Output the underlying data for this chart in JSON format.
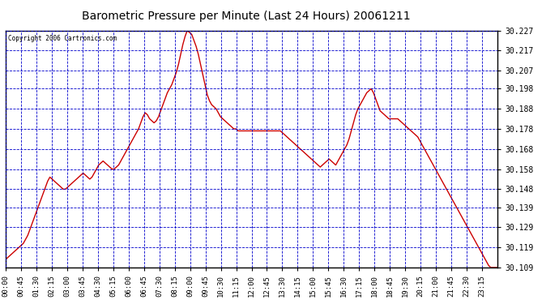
{
  "title": "Barometric Pressure per Minute (Last 24 Hours) 20061211",
  "copyright": "Copyright 2006 Cartronics.com",
  "background_color": "#ffffff",
  "plot_background": "#ffffff",
  "line_color": "#cc0000",
  "grid_color": "#0000cc",
  "title_color": "#000000",
  "ylim": [
    30.109,
    30.227
  ],
  "yticks": [
    30.109,
    30.119,
    30.129,
    30.139,
    30.148,
    30.158,
    30.168,
    30.178,
    30.188,
    30.198,
    30.207,
    30.217,
    30.227
  ],
  "xtick_labels": [
    "00:00",
    "00:45",
    "01:30",
    "02:15",
    "03:00",
    "03:45",
    "04:30",
    "05:15",
    "06:00",
    "06:45",
    "07:30",
    "08:15",
    "09:00",
    "09:45",
    "10:30",
    "11:15",
    "12:00",
    "12:45",
    "13:30",
    "14:15",
    "15:00",
    "15:45",
    "16:30",
    "17:15",
    "18:00",
    "18:45",
    "19:30",
    "20:15",
    "21:00",
    "21:45",
    "22:30",
    "23:15"
  ],
  "pressure_data": [
    30.113,
    30.114,
    30.115,
    30.116,
    30.117,
    30.118,
    30.119,
    30.12,
    30.121,
    30.123,
    30.125,
    30.128,
    30.131,
    30.134,
    30.137,
    30.14,
    30.143,
    30.146,
    30.149,
    30.152,
    30.154,
    30.153,
    30.152,
    30.151,
    30.15,
    30.149,
    30.148,
    30.148,
    30.149,
    30.15,
    30.151,
    30.152,
    30.153,
    30.154,
    30.155,
    30.156,
    30.155,
    30.154,
    30.153,
    30.154,
    30.156,
    30.158,
    30.16,
    30.161,
    30.162,
    30.161,
    30.16,
    30.159,
    30.158,
    30.158,
    30.159,
    30.16,
    30.162,
    30.164,
    30.166,
    30.168,
    30.17,
    30.172,
    30.174,
    30.176,
    30.178,
    30.181,
    30.184,
    30.186,
    30.185,
    30.183,
    30.182,
    30.181,
    30.182,
    30.184,
    30.187,
    30.19,
    30.193,
    30.196,
    30.198,
    30.2,
    30.203,
    30.206,
    30.21,
    30.215,
    30.22,
    30.224,
    30.227,
    30.226,
    30.225,
    30.222,
    30.219,
    30.215,
    30.21,
    30.205,
    30.2,
    30.195,
    30.192,
    30.19,
    30.189,
    30.188,
    30.186,
    30.184,
    30.183,
    30.182,
    30.181,
    30.18,
    30.179,
    30.178,
    30.178,
    30.177,
    30.177,
    30.177,
    30.177,
    30.177,
    30.177,
    30.177,
    30.177,
    30.177,
    30.177,
    30.177,
    30.177,
    30.177,
    30.177,
    30.177,
    30.177,
    30.177,
    30.177,
    30.177,
    30.177,
    30.176,
    30.175,
    30.174,
    30.173,
    30.172,
    30.171,
    30.17,
    30.169,
    30.168,
    30.167,
    30.166,
    30.165,
    30.164,
    30.163,
    30.162,
    30.161,
    30.16,
    30.159,
    30.16,
    30.161,
    30.162,
    30.163,
    30.162,
    30.161,
    30.16,
    30.162,
    30.164,
    30.166,
    30.168,
    30.17,
    30.173,
    30.177,
    30.181,
    30.185,
    30.188,
    30.19,
    30.192,
    30.194,
    30.196,
    30.197,
    30.198,
    30.196,
    30.193,
    30.19,
    30.187,
    30.186,
    30.185,
    30.184,
    30.183,
    30.183,
    30.183,
    30.183,
    30.183,
    30.182,
    30.181,
    30.18,
    30.179,
    30.178,
    30.177,
    30.176,
    30.175,
    30.174,
    30.172,
    30.17,
    30.168,
    30.166,
    30.164,
    30.162,
    30.16,
    30.158,
    30.156,
    30.154,
    30.152,
    30.15,
    30.148,
    30.146,
    30.144,
    30.142,
    30.14,
    30.138,
    30.136,
    30.134,
    30.132,
    30.13,
    30.128,
    30.126,
    30.124,
    30.122,
    30.12,
    30.118,
    30.116,
    30.114,
    30.112,
    30.11,
    30.109,
    30.109,
    30.109,
    30.109
  ]
}
